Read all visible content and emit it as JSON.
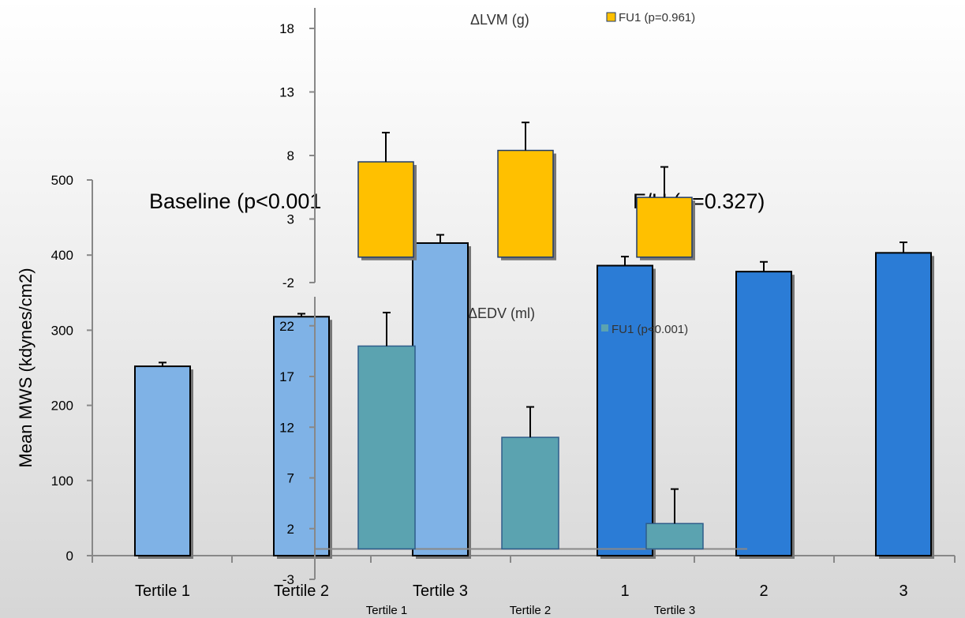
{
  "chart_data": [
    {
      "type": "bar",
      "ylabel": "Mean MWS (kdynes/cm2)",
      "ylim": [
        0,
        500
      ],
      "yticks": [
        0,
        100,
        200,
        300,
        400,
        500
      ],
      "panels": [
        {
          "title": "Baseline (p<0.001",
          "categories": [
            "Tertile 1",
            "Tertile 2",
            "Tertile 3"
          ],
          "values": [
            252,
            318,
            416
          ],
          "errors": [
            5,
            4,
            11
          ],
          "color": "#7fb2e6"
        },
        {
          "title": "F/U (p=0.327)",
          "categories": [
            "1",
            "2",
            "3"
          ],
          "values": [
            386,
            378,
            403
          ],
          "errors": [
            12,
            13,
            14
          ],
          "color": "#2b7cd6"
        }
      ],
      "legend": "none",
      "grid": false
    },
    {
      "type": "bar",
      "title": "ΔLVM (g)",
      "legend": [
        "FU1 (p=0.961)"
      ],
      "legend_position": "top-right",
      "categories": [
        "Tertile 1",
        "Tertile 2",
        "Tertile 3"
      ],
      "values": [
        7.5,
        8.4,
        4.7
      ],
      "errors": [
        2.3,
        2.2,
        2.4
      ],
      "yticks": [
        -2,
        3,
        8,
        13,
        18
      ],
      "ylim": [
        -2,
        20
      ],
      "color": "#ffc000"
    },
    {
      "type": "bar",
      "title": "ΔEDV (ml)",
      "legend": [
        "FU1 (p<0.001)"
      ],
      "legend_position": "top-right",
      "categories": [
        "Tertile 1",
        "Tertile 2",
        "Tertile 3"
      ],
      "values": [
        20,
        11,
        2.5
      ],
      "errors": [
        3.3,
        3.0,
        3.4
      ],
      "yticks": [
        -3,
        2,
        7,
        12,
        17,
        22
      ],
      "ylim": [
        -3,
        25
      ],
      "color": "#5ba3b0"
    }
  ]
}
